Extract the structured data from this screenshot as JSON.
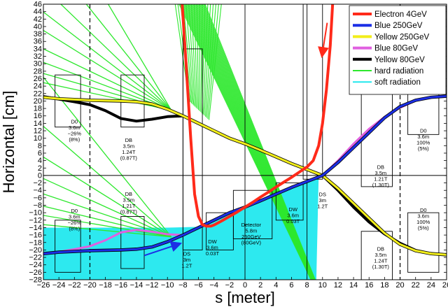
{
  "chart_data": {
    "type": "line",
    "xlabel": "s [meter]",
    "ylabel": "Horizontal [cm]",
    "xlim": [
      -26,
      26
    ],
    "ylim": [
      -28,
      46
    ],
    "xticks": [
      -26,
      -24,
      -22,
      -20,
      -18,
      -16,
      -14,
      -12,
      -10,
      -8,
      -6,
      -4,
      -2,
      0,
      2,
      4,
      6,
      8,
      10,
      12,
      14,
      16,
      18,
      20,
      22,
      24,
      26
    ],
    "yticks": [
      -28,
      -26,
      -24,
      -22,
      -20,
      -18,
      -16,
      -14,
      -12,
      -10,
      -8,
      -6,
      -4,
      -2,
      0,
      2,
      4,
      6,
      8,
      10,
      12,
      14,
      16,
      18,
      20,
      22,
      24,
      26,
      28,
      30,
      32,
      34,
      36,
      38,
      40,
      42,
      44,
      46
    ],
    "dashed_x": [
      -20,
      20
    ],
    "vertical_x": [
      -8,
      0,
      8
    ],
    "legend": {
      "position": "top-right"
    },
    "colors": {
      "electron": "#ff2a1a",
      "blue": "#1c2fe6",
      "yellow": "#f2ee1a",
      "magenta": "#e060e0",
      "black": "#000000",
      "hard": "#2ee82e",
      "soft": "#22e8ee"
    },
    "series": [
      {
        "name": "Electron  4GeV",
        "key": "electron",
        "x": [
          -8.1,
          -7.6,
          -7.0,
          -6.5,
          -6.0,
          -5.5,
          -5.0,
          -4.4,
          -4.0,
          -3.0,
          -2.0,
          -1.0,
          0,
          1,
          2,
          3,
          4,
          5,
          6,
          7,
          8,
          8.8,
          9.5,
          10.0,
          10.5,
          11.0,
          11.3
        ],
        "y": [
          46,
          30,
          10,
          -5,
          -11,
          -13.2,
          -13.6,
          -13.6,
          -13.3,
          -12.2,
          -11.0,
          -9.8,
          -8.5,
          -7.2,
          -5.8,
          -4.5,
          -3.1,
          -1.8,
          -0.5,
          0.9,
          2.3,
          4,
          8,
          14,
          23,
          35,
          46
        ]
      },
      {
        "name": "Blue    250GeV",
        "key": "blue",
        "x": [
          -26,
          -24,
          -22,
          -20,
          -18,
          -16,
          -14,
          -12,
          -10,
          -8,
          -6,
          -4,
          -2,
          0,
          2,
          4,
          6,
          8,
          10,
          12,
          14,
          16,
          18,
          20,
          22,
          24,
          26
        ],
        "y": [
          -21,
          -20.6,
          -20.4,
          -20.2,
          -20.1,
          -20,
          -19.8,
          -19.2,
          -17.8,
          -16,
          -14,
          -12,
          -10,
          -8.5,
          -6.8,
          -5,
          -3.2,
          -1.6,
          0,
          3.5,
          7.5,
          11.5,
          15.5,
          18.5,
          20.2,
          21,
          21.3
        ]
      },
      {
        "name": "Yellow 250GeV",
        "key": "yellow",
        "x": [
          -26,
          -24,
          -22,
          -20,
          -18,
          -16,
          -14,
          -12,
          -10,
          -8,
          -6,
          -4,
          -2,
          0,
          2,
          4,
          6,
          8,
          10,
          12,
          14,
          16,
          18,
          20,
          22,
          24,
          26
        ],
        "y": [
          21,
          20.6,
          20.4,
          20.2,
          20.1,
          20,
          19.8,
          19.2,
          17.8,
          16,
          14,
          12,
          10,
          8.5,
          6.8,
          5,
          3.2,
          1.6,
          0,
          -3.5,
          -7.5,
          -11.5,
          -15.5,
          -18.5,
          -20.2,
          -21,
          -21.3
        ]
      },
      {
        "name": "Blue    80GeV",
        "key": "magenta",
        "x": [
          -26,
          -24,
          -22,
          -20,
          -18,
          -16,
          -14,
          -12,
          -10,
          -8,
          -6,
          -4,
          -2,
          0,
          2,
          4,
          6,
          8,
          10,
          12,
          14,
          16,
          18,
          20,
          22,
          24,
          26
        ],
        "y": [
          -21.2,
          -20.5,
          -19.8,
          -19,
          -17.4,
          -15.3,
          -14.6,
          -15.1,
          -15.8,
          -16,
          -14,
          -12,
          -10,
          -8.5,
          -6.8,
          -5,
          -3.2,
          -1.6,
          0,
          4,
          8.5,
          12.5,
          15.7,
          18.2,
          20.1,
          21,
          21.3
        ]
      },
      {
        "name": "Yellow 80GeV",
        "key": "black",
        "x": [
          -26,
          -24,
          -22,
          -20,
          -18,
          -16,
          -14,
          -12,
          -10,
          -8,
          -6,
          -4,
          -2,
          0,
          2,
          4,
          6,
          8,
          10,
          12,
          14,
          16,
          18,
          20,
          22,
          24,
          26
        ],
        "y": [
          21.2,
          20.5,
          19.8,
          19,
          17.4,
          15.3,
          14.6,
          15.1,
          15.8,
          16,
          14,
          12,
          10,
          8.5,
          6.8,
          5,
          3.2,
          1.6,
          0,
          -4,
          -8.5,
          -12.5,
          -15.7,
          -18.2,
          -20.1,
          -21,
          -21.3
        ]
      },
      {
        "name": "hard radiation",
        "key": "hard"
      },
      {
        "name": "soft  radiation",
        "key": "soft"
      }
    ],
    "annotations": [
      {
        "x": -22,
        "y": 14,
        "lines": [
          "D0",
          "3.6m",
          "−26%",
          "(8%)"
        ]
      },
      {
        "x": -15,
        "y": 9,
        "lines": [
          "DB",
          "3.5m",
          "1.24T",
          "(0.87T)"
        ]
      },
      {
        "x": -15,
        "y": -5.5,
        "lines": [
          "DB",
          "3.5m",
          "1.21T",
          "(0.87T)"
        ]
      },
      {
        "x": -22,
        "y": -10,
        "lines": [
          "D0",
          "3.6m",
          "−26%",
          "(8%)"
        ]
      },
      {
        "x": -7.5,
        "y": -21.5,
        "lines": [
          "DS",
          "3m",
          "1.2T"
        ]
      },
      {
        "x": -4.2,
        "y": -18.2,
        "lines": [
          "DW",
          "3.6m",
          "0.03T"
        ]
      },
      {
        "x": 0.8,
        "y": -13.7,
        "lines": [
          "Detector",
          "5.8m",
          "250GeV",
          "(80GeV)"
        ]
      },
      {
        "x": 6.2,
        "y": -9.6,
        "lines": [
          "DW",
          "3.6m",
          "0.03T"
        ]
      },
      {
        "x": 10.0,
        "y": -5.6,
        "lines": [
          "DS",
          "3m",
          "1.2T"
        ]
      },
      {
        "x": 17.5,
        "y": 1.8,
        "lines": [
          "DB",
          "3.5m",
          "1.21T",
          "(1.30T)"
        ]
      },
      {
        "x": 23,
        "y": 11.5,
        "lines": [
          "D0",
          "3.6m",
          "100%",
          "(5%)"
        ]
      },
      {
        "x": 23,
        "y": -9.8,
        "lines": [
          "D0",
          "3.6m",
          "100%",
          "(5%)"
        ]
      },
      {
        "x": 17.5,
        "y": -20.2,
        "lines": [
          "DB",
          "3.5m",
          "1.24T",
          "(1.30T)"
        ]
      }
    ]
  }
}
